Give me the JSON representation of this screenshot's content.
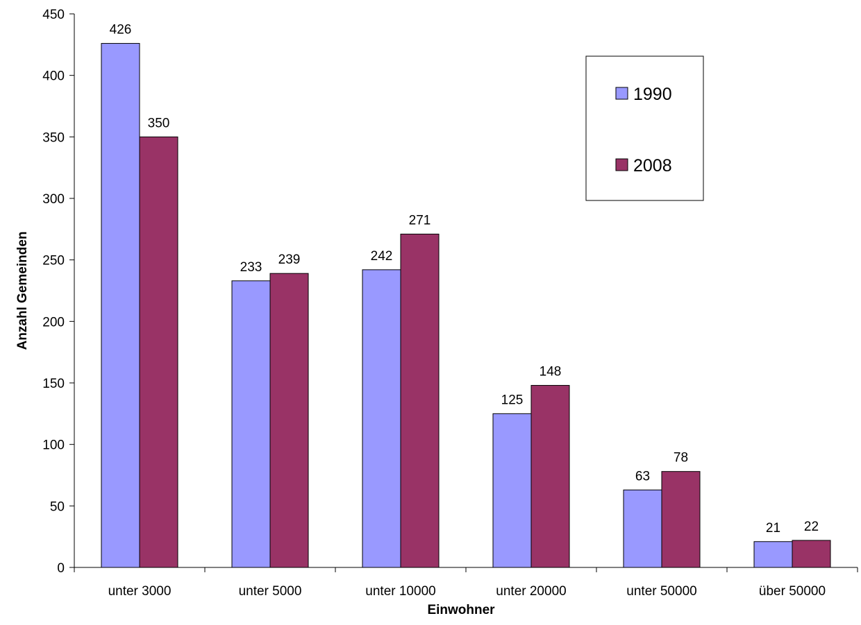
{
  "chart_data": {
    "type": "bar",
    "title": "",
    "xlabel": "Einwohner",
    "ylabel": "Anzahl Gemeinden",
    "categories": [
      "unter 3000",
      "unter 5000",
      "unter 10000",
      "unter 20000",
      "unter 50000",
      "über 50000"
    ],
    "series": [
      {
        "name": "1990",
        "values": [
          426,
          233,
          242,
          125,
          63,
          21
        ],
        "color": "#9999FF"
      },
      {
        "name": "2008",
        "values": [
          350,
          239,
          271,
          148,
          78,
          22
        ],
        "color": "#993366"
      }
    ],
    "ylim": [
      0,
      450
    ],
    "yticks": [
      0,
      50,
      100,
      150,
      200,
      250,
      300,
      350,
      400,
      450
    ],
    "grid": false,
    "legend_position": "top-right",
    "data_labels": true
  }
}
